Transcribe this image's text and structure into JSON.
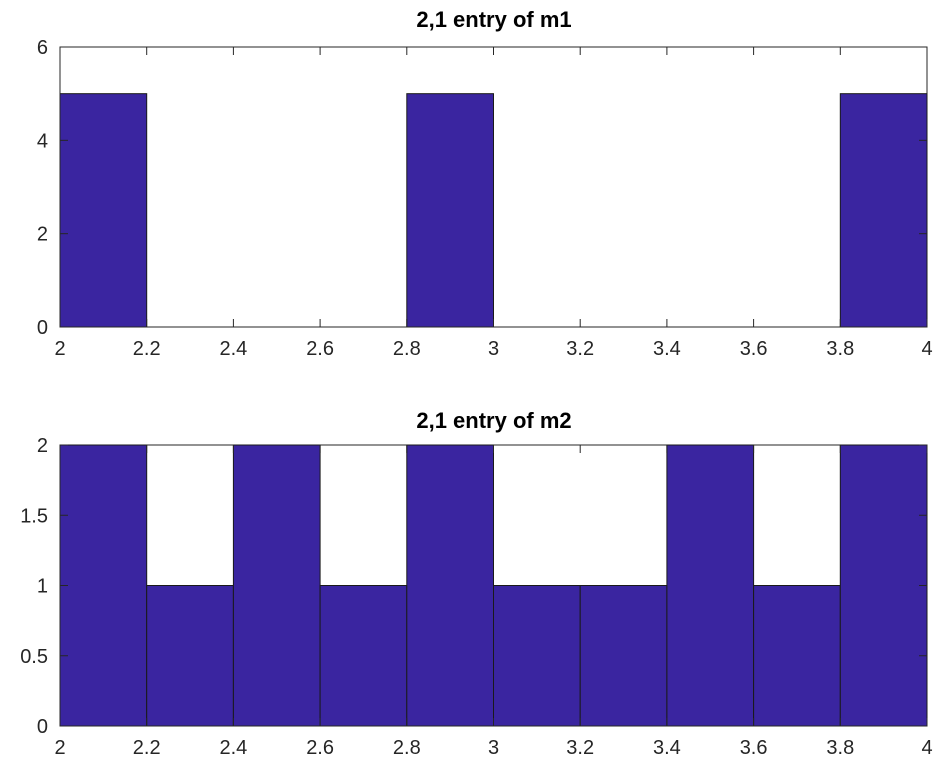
{
  "chart_data": [
    {
      "type": "bar",
      "title": "2,1 entry of m1",
      "xlabel": "",
      "ylabel": "",
      "bin_edges": [
        2,
        2.2,
        2.4,
        2.6,
        2.8,
        3,
        3.2,
        3.4,
        3.6,
        3.8,
        4
      ],
      "values": [
        5,
        0,
        0,
        0,
        5,
        0,
        0,
        0,
        0,
        5
      ],
      "xlim": [
        2,
        4
      ],
      "ylim": [
        0,
        6
      ],
      "xticks": [
        2,
        2.2,
        2.4,
        2.6,
        2.8,
        3,
        3.2,
        3.4,
        3.6,
        3.8,
        4
      ],
      "xtick_labels": [
        "2",
        "2.2",
        "2.4",
        "2.6",
        "2.8",
        "3",
        "3.2",
        "3.4",
        "3.6",
        "3.8",
        "4"
      ],
      "yticks": [
        0,
        2,
        4,
        6
      ],
      "ytick_labels": [
        "0",
        "2",
        "4",
        "6"
      ],
      "bar_color": "#3a25a0",
      "grid": false
    },
    {
      "type": "bar",
      "title": "2,1 entry of m2",
      "xlabel": "",
      "ylabel": "",
      "bin_edges": [
        2,
        2.2,
        2.4,
        2.6,
        2.8,
        3,
        3.2,
        3.4,
        3.6,
        3.8,
        4
      ],
      "values": [
        2,
        1,
        2,
        1,
        2,
        1,
        1,
        2,
        1,
        2
      ],
      "xlim": [
        2,
        4
      ],
      "ylim": [
        0,
        2
      ],
      "xticks": [
        2,
        2.2,
        2.4,
        2.6,
        2.8,
        3,
        3.2,
        3.4,
        3.6,
        3.8,
        4
      ],
      "xtick_labels": [
        "2",
        "2.2",
        "2.4",
        "2.6",
        "2.8",
        "3",
        "3.2",
        "3.4",
        "3.6",
        "3.8",
        "4"
      ],
      "yticks": [
        0,
        0.5,
        1,
        1.5,
        2
      ],
      "ytick_labels": [
        "0",
        "0.5",
        "1",
        "1.5",
        "2"
      ],
      "bar_color": "#3a25a0",
      "grid": false
    }
  ]
}
